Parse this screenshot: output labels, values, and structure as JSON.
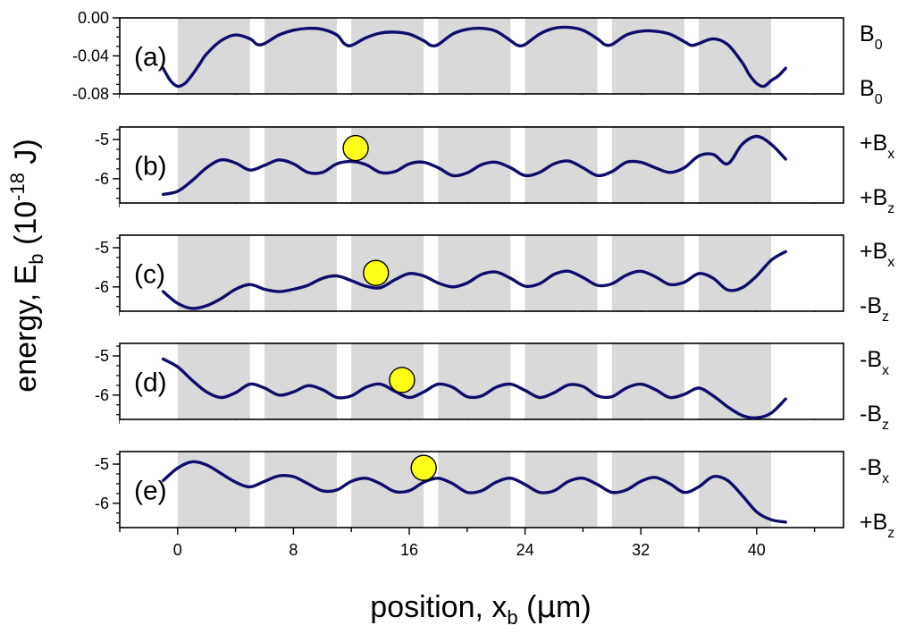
{
  "chart_data": {
    "type": "line",
    "xlabel": {
      "main": "position, x",
      "sub": "b",
      "tail": " (",
      "mu": "μ",
      "unit": "m)"
    },
    "ylabel": {
      "main": "energy, E",
      "sub": "b",
      "mid": " (10",
      "sup": "-18",
      "tail": " J)"
    },
    "xlim": [
      -4,
      46
    ],
    "xticks": [
      0,
      8,
      16,
      24,
      32,
      40
    ],
    "xtick_labels": [
      "0",
      "8",
      "16",
      "24",
      "32",
      "40"
    ],
    "shaded_regions": [
      [
        0,
        5
      ],
      [
        6,
        11
      ],
      [
        12,
        17
      ],
      [
        18,
        23
      ],
      [
        24,
        29
      ],
      [
        30,
        35
      ],
      [
        36,
        41
      ]
    ],
    "line_color": "#0d0d6b",
    "shade_color": "#d9d9d9",
    "ball_color": "#ffff1a",
    "panels": [
      {
        "label": "(a)",
        "ylim": [
          -0.08,
          0.0
        ],
        "yticks": [
          0.0,
          -0.04,
          -0.08
        ],
        "ytick_labels": [
          "0.00",
          "-0.04",
          "-0.08"
        ],
        "right_top": {
          "main": "B",
          "sub": "0"
        },
        "right_bottom": {
          "main": "B",
          "sub": "0"
        },
        "ball_x": null,
        "series": {
          "x": [
            -1,
            -0.5,
            0,
            0.5,
            1,
            1.5,
            2,
            3,
            4,
            5,
            5.5,
            6,
            7,
            8,
            9,
            10,
            11,
            11.5,
            12,
            13,
            14,
            15,
            16,
            17,
            17.5,
            18,
            19,
            20,
            21,
            22,
            23,
            23.5,
            24,
            25,
            26,
            27,
            28,
            29,
            29.5,
            30,
            31,
            32,
            33,
            34,
            35,
            35.5,
            36,
            37,
            38,
            39,
            39.5,
            40,
            40.5,
            41,
            41.5,
            42
          ],
          "y": [
            -0.053,
            -0.066,
            -0.072,
            -0.069,
            -0.06,
            -0.049,
            -0.038,
            -0.024,
            -0.018,
            -0.022,
            -0.028,
            -0.027,
            -0.018,
            -0.013,
            -0.011,
            -0.012,
            -0.018,
            -0.027,
            -0.029,
            -0.021,
            -0.016,
            -0.015,
            -0.017,
            -0.024,
            -0.029,
            -0.028,
            -0.017,
            -0.012,
            -0.011,
            -0.014,
            -0.024,
            -0.029,
            -0.028,
            -0.017,
            -0.011,
            -0.01,
            -0.013,
            -0.022,
            -0.028,
            -0.028,
            -0.018,
            -0.014,
            -0.014,
            -0.017,
            -0.025,
            -0.029,
            -0.027,
            -0.022,
            -0.028,
            -0.047,
            -0.06,
            -0.069,
            -0.072,
            -0.066,
            -0.061,
            -0.053
          ]
        }
      },
      {
        "label": "(b)",
        "ylim": [
          -6.62,
          -4.68
        ],
        "yticks": [
          -5,
          -6
        ],
        "ytick_labels": [
          "-5",
          "-6"
        ],
        "right_top": {
          "main": "+B",
          "sub": "x"
        },
        "right_bottom": {
          "main": "+B",
          "sub": "z"
        },
        "ball_x": 12.3,
        "series": {
          "x": [
            -1,
            0,
            1,
            2,
            3,
            4,
            5,
            6,
            7,
            8,
            9,
            10,
            11,
            12,
            13,
            14,
            15,
            16,
            17,
            18,
            19,
            20,
            21,
            22,
            23,
            24,
            25,
            26,
            27,
            28,
            29,
            30,
            31,
            32,
            33,
            34,
            35,
            36,
            37,
            38,
            39,
            40,
            41,
            42
          ],
          "y": [
            -6.4,
            -6.32,
            -6.05,
            -5.72,
            -5.52,
            -5.6,
            -5.78,
            -5.66,
            -5.52,
            -5.62,
            -5.84,
            -5.84,
            -5.62,
            -5.56,
            -5.64,
            -5.84,
            -5.82,
            -5.62,
            -5.58,
            -5.72,
            -5.92,
            -5.85,
            -5.64,
            -5.58,
            -5.72,
            -5.92,
            -5.84,
            -5.62,
            -5.55,
            -5.72,
            -5.92,
            -5.82,
            -5.58,
            -5.58,
            -5.72,
            -5.84,
            -5.72,
            -5.42,
            -5.38,
            -5.62,
            -5.12,
            -4.92,
            -5.12,
            -5.5
          ]
        }
      },
      {
        "label": "(c)",
        "ylim": [
          -6.62,
          -4.68
        ],
        "yticks": [
          -5,
          -6
        ],
        "ytick_labels": [
          "-5",
          "-6"
        ],
        "right_top": {
          "main": "+B",
          "sub": "x"
        },
        "right_bottom": {
          "main": "-B",
          "sub": "z"
        },
        "ball_x": 13.7,
        "series": {
          "x": [
            -1,
            0,
            1,
            2,
            3,
            4,
            5,
            6,
            7,
            8,
            9,
            10,
            11,
            12,
            13,
            14,
            15,
            16,
            17,
            18,
            19,
            20,
            21,
            22,
            23,
            24,
            25,
            26,
            27,
            28,
            29,
            30,
            31,
            32,
            33,
            34,
            35,
            36,
            37,
            38,
            39,
            40,
            41,
            42
          ],
          "y": [
            -6.12,
            -6.42,
            -6.55,
            -6.48,
            -6.3,
            -6.06,
            -5.94,
            -6.06,
            -6.12,
            -6.06,
            -5.96,
            -5.78,
            -5.72,
            -5.84,
            -5.98,
            -6.02,
            -5.82,
            -5.66,
            -5.72,
            -5.9,
            -6.0,
            -5.9,
            -5.68,
            -5.62,
            -5.78,
            -5.98,
            -5.92,
            -5.68,
            -5.6,
            -5.76,
            -5.96,
            -5.92,
            -5.7,
            -5.6,
            -5.74,
            -5.94,
            -5.88,
            -5.66,
            -5.78,
            -6.08,
            -6.02,
            -5.72,
            -5.32,
            -5.1
          ]
        }
      },
      {
        "label": "(d)",
        "ylim": [
          -6.62,
          -4.68
        ],
        "yticks": [
          -5,
          -6
        ],
        "ytick_labels": [
          "-5",
          "-6"
        ],
        "right_top": {
          "main": "-B",
          "sub": "x"
        },
        "right_bottom": {
          "main": "-B",
          "sub": "z"
        },
        "ball_x": 15.5,
        "series": {
          "x": [
            -1,
            0,
            1,
            2,
            3,
            4,
            5,
            6,
            7,
            8,
            9,
            10,
            11,
            12,
            13,
            14,
            15,
            16,
            17,
            18,
            19,
            20,
            21,
            22,
            23,
            24,
            25,
            26,
            27,
            28,
            29,
            30,
            31,
            32,
            33,
            34,
            35,
            36,
            37,
            38,
            39,
            40,
            41,
            42
          ],
          "y": [
            -5.08,
            -5.28,
            -5.62,
            -5.92,
            -6.06,
            -5.94,
            -5.72,
            -5.82,
            -6.0,
            -5.92,
            -5.76,
            -5.86,
            -6.06,
            -6.02,
            -5.8,
            -5.72,
            -5.9,
            -6.06,
            -5.92,
            -5.72,
            -5.8,
            -6.04,
            -6.02,
            -5.8,
            -5.72,
            -5.88,
            -6.06,
            -5.94,
            -5.74,
            -5.78,
            -6.02,
            -6.04,
            -5.82,
            -5.72,
            -5.86,
            -6.06,
            -5.98,
            -5.82,
            -6.02,
            -6.3,
            -6.52,
            -6.58,
            -6.46,
            -6.1
          ]
        }
      },
      {
        "label": "(e)",
        "ylim": [
          -6.62,
          -4.68
        ],
        "yticks": [
          -5,
          -6
        ],
        "ytick_labels": [
          "-5",
          "-6"
        ],
        "right_top": {
          "main": "-B",
          "sub": "x"
        },
        "right_bottom": {
          "main": "+B",
          "sub": "z"
        },
        "ball_x": 17.0,
        "series": {
          "x": [
            -1,
            0,
            1,
            2,
            3,
            4,
            5,
            6,
            7,
            8,
            9,
            10,
            11,
            12,
            13,
            14,
            15,
            16,
            17,
            18,
            19,
            20,
            21,
            22,
            23,
            24,
            25,
            26,
            27,
            28,
            29,
            30,
            31,
            32,
            33,
            34,
            35,
            36,
            37,
            38,
            39,
            40,
            41,
            42
          ],
          "y": [
            -5.42,
            -5.1,
            -4.94,
            -5.02,
            -5.24,
            -5.46,
            -5.58,
            -5.44,
            -5.3,
            -5.32,
            -5.5,
            -5.68,
            -5.66,
            -5.44,
            -5.36,
            -5.5,
            -5.7,
            -5.68,
            -5.46,
            -5.36,
            -5.5,
            -5.72,
            -5.68,
            -5.46,
            -5.36,
            -5.52,
            -5.72,
            -5.68,
            -5.44,
            -5.36,
            -5.52,
            -5.72,
            -5.66,
            -5.44,
            -5.34,
            -5.5,
            -5.72,
            -5.58,
            -5.32,
            -5.42,
            -5.8,
            -6.22,
            -6.42,
            -6.48
          ]
        }
      }
    ]
  }
}
